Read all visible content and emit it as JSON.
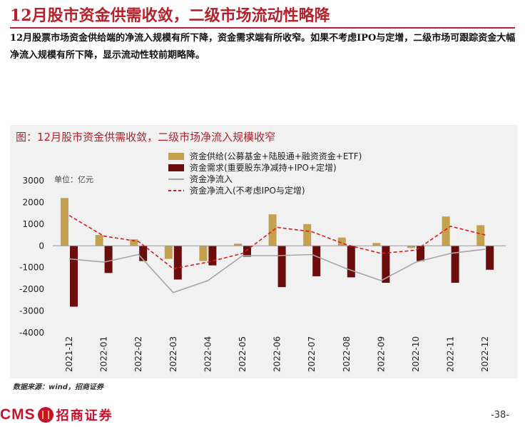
{
  "page": {
    "title": "12月股市资金供需收敛，二级市场流动性略降",
    "summary": "12月股票市场资金供给端的净流入规模有所下降，资金需求端有所收窄。如果不考虑IPO与定增，二级市场可跟踪资金大幅净流入规模有所下降，显示流动性较前期略降。",
    "source": "数据来源：wind，招商证券",
    "page_number": "-38-",
    "logo_text": "CMS",
    "logo_cn": "招商证券"
  },
  "colors": {
    "brand_red": "#b5222b",
    "supply_bar": "#c3a14f",
    "demand_bar": "#6b0d0d",
    "net_line": "#a6a6a6",
    "net_ex_line": "#d71f1f"
  },
  "chart_data": {
    "type": "bar",
    "title": "图：12月股市资金供需收敛，二级市场净流入规模收窄",
    "unit_label": "单位：亿元",
    "categories": [
      "2021-12",
      "2022-01",
      "2022-02",
      "2022-03",
      "2022-04",
      "2022-05",
      "2022-06",
      "2022-07",
      "2022-08",
      "2022-09",
      "2022-10",
      "2022-11",
      "2022-12"
    ],
    "ylim": [
      -4000,
      3000
    ],
    "yticks": [
      3000,
      2000,
      1000,
      0,
      -1000,
      -2000,
      -3000,
      -4000
    ],
    "grid": false,
    "legend_position": "top",
    "series": [
      {
        "name": "资金供给(公募基金+陆股通+融资资金+ETF)",
        "type": "bar",
        "color": "#c3a14f",
        "values": [
          2200,
          500,
          300,
          -600,
          -700,
          100,
          1450,
          1000,
          380,
          130,
          -100,
          1350,
          950
        ]
      },
      {
        "name": "资金需求(重要股东净减持+IPO+定增)",
        "type": "bar",
        "color": "#6b0d0d",
        "values": [
          -2800,
          -1250,
          -700,
          -1550,
          -900,
          -500,
          -1900,
          -1400,
          -1450,
          -1700,
          -700,
          -1700,
          -1100
        ]
      },
      {
        "name": "资金净流入",
        "type": "line",
        "color": "#a6a6a6",
        "dash": false,
        "values": [
          -600,
          -750,
          -400,
          -2150,
          -1600,
          -450,
          -450,
          -400,
          -1050,
          -1600,
          -750,
          -350,
          -150
        ]
      },
      {
        "name": "资金净流入(不考虑IPO与定增)",
        "type": "line",
        "color": "#d71f1f",
        "dash": true,
        "values": [
          1400,
          450,
          200,
          -1050,
          -750,
          -350,
          850,
          650,
          50,
          -350,
          -200,
          900,
          500
        ]
      }
    ]
  }
}
